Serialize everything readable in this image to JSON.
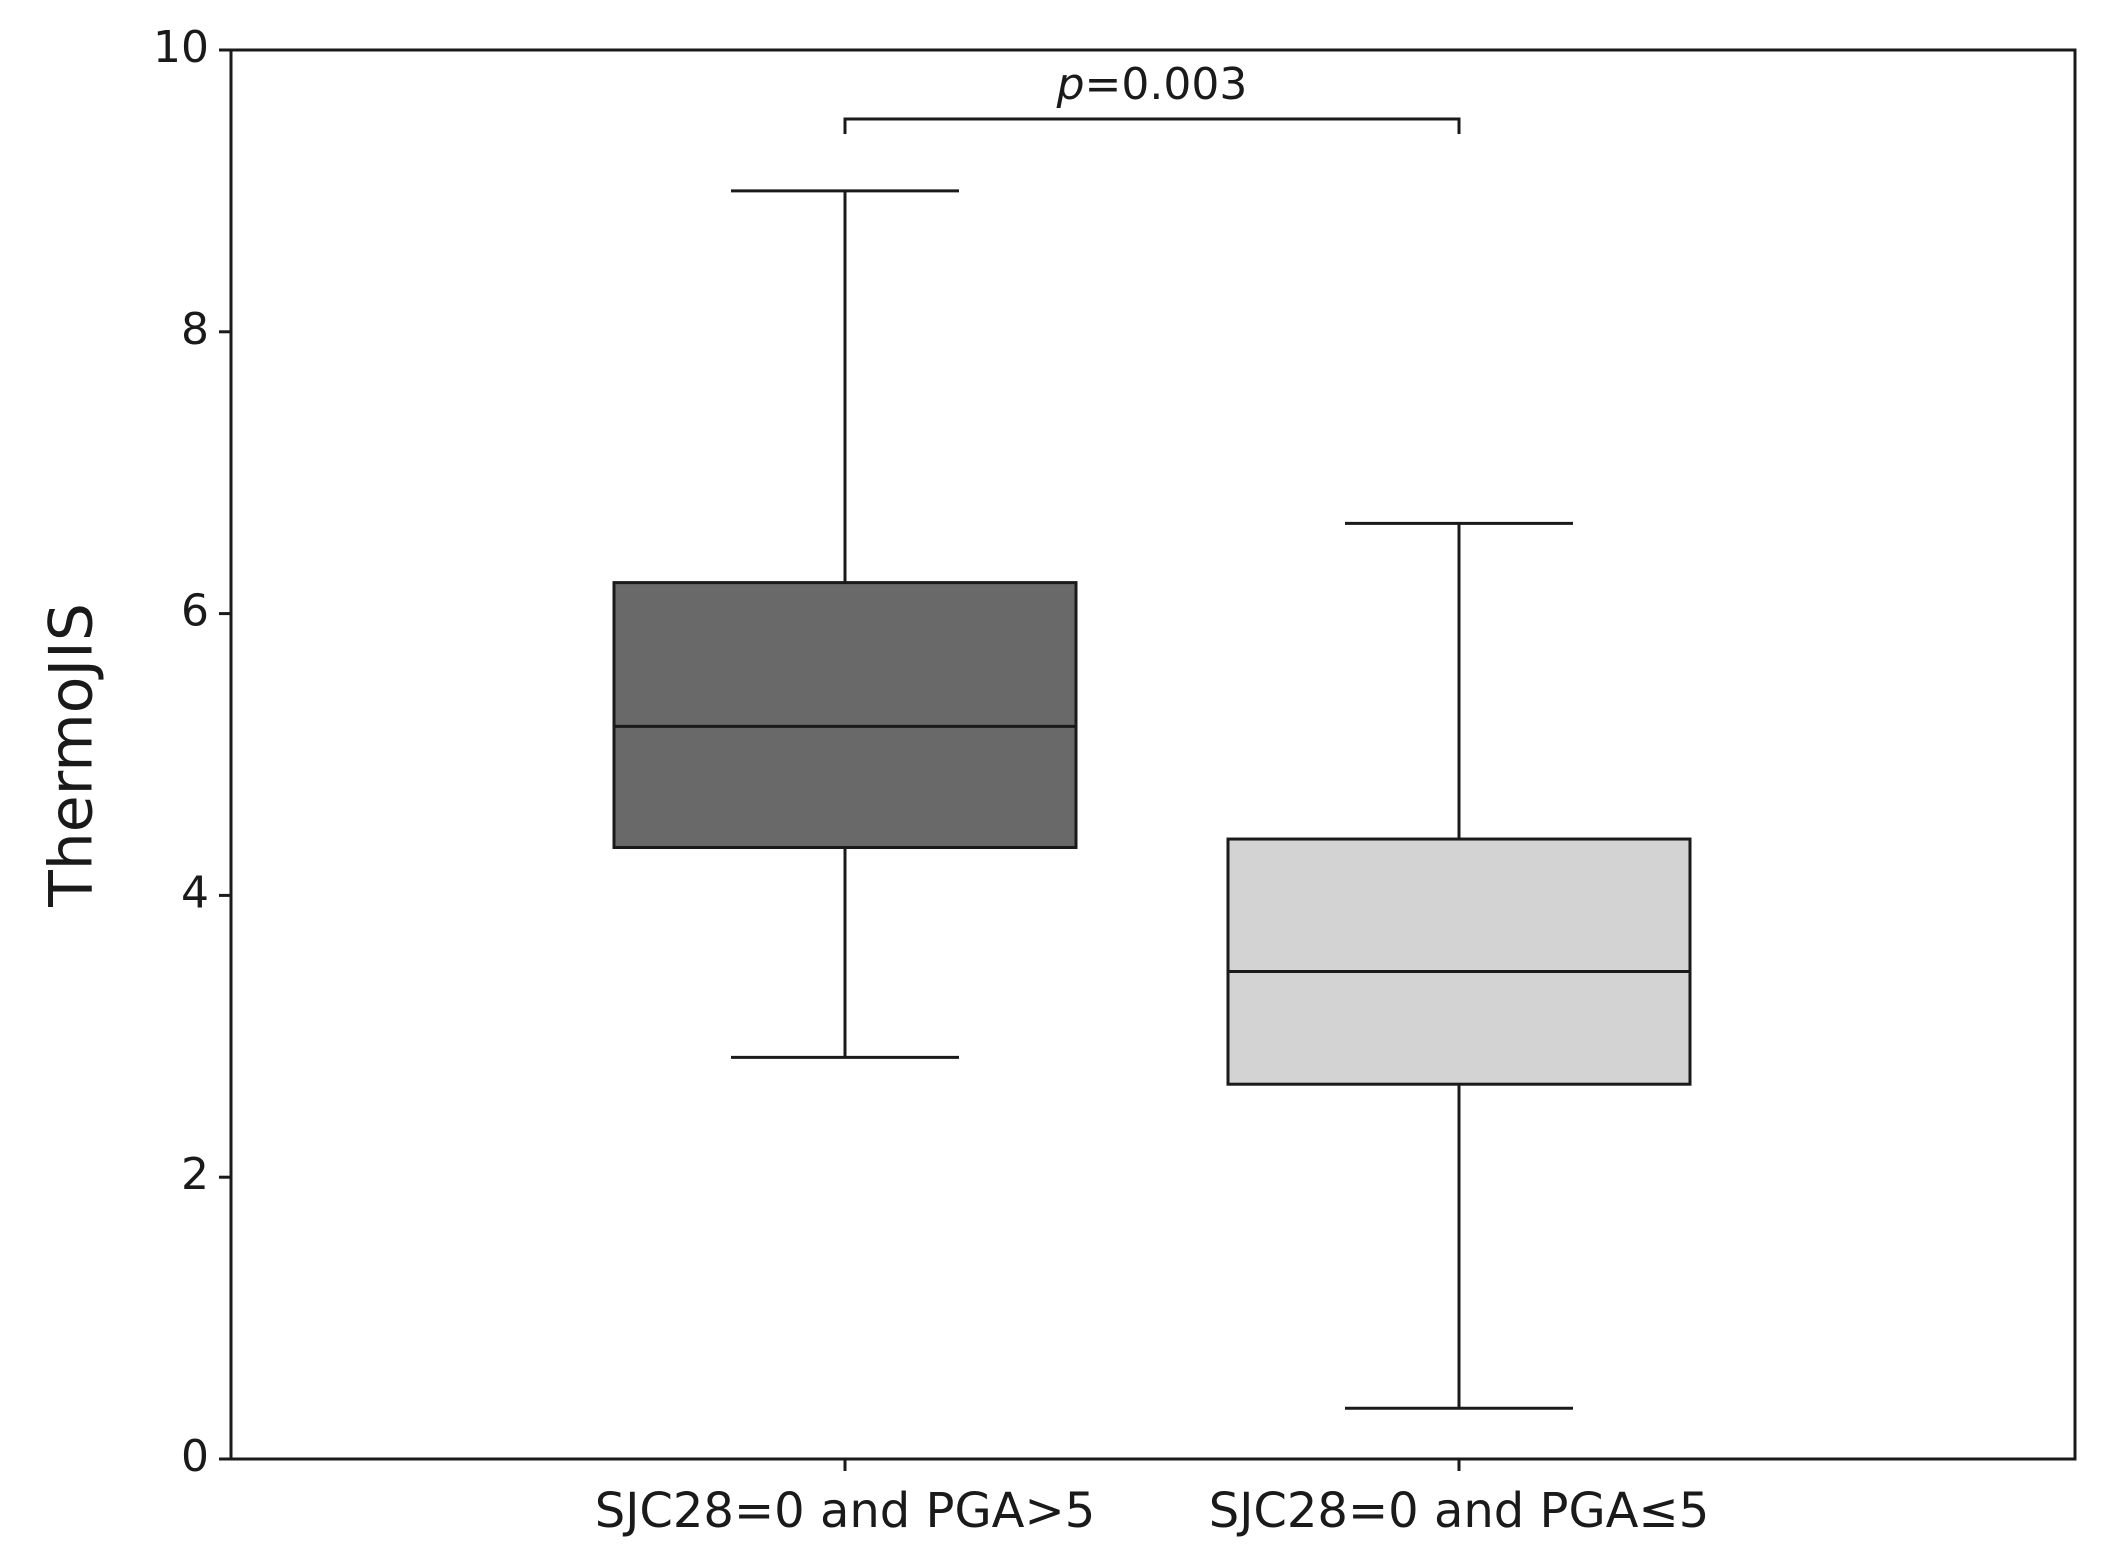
{
  "chart_data": {
    "type": "box",
    "y_label": "ThermoJIS",
    "categories": [
      "SJC28=0 and PGA>5",
      "SJC28=0 and PGA≤5"
    ],
    "boxes": [
      {
        "whisker_low": 2.85,
        "q1": 4.34,
        "median": 5.2,
        "q3": 6.22,
        "whisker_high": 9.0,
        "color": "#696969"
      },
      {
        "whisker_low": 0.36,
        "q1": 2.66,
        "median": 3.46,
        "q3": 4.4,
        "whisker_high": 6.64,
        "color": "#d3d3d3"
      }
    ],
    "annotation": [
      "p",
      "=0.003"
    ],
    "ylim": [
      0,
      10
    ],
    "yticks": [
      0,
      2,
      4,
      6,
      8,
      10
    ],
    "grid": false
  }
}
